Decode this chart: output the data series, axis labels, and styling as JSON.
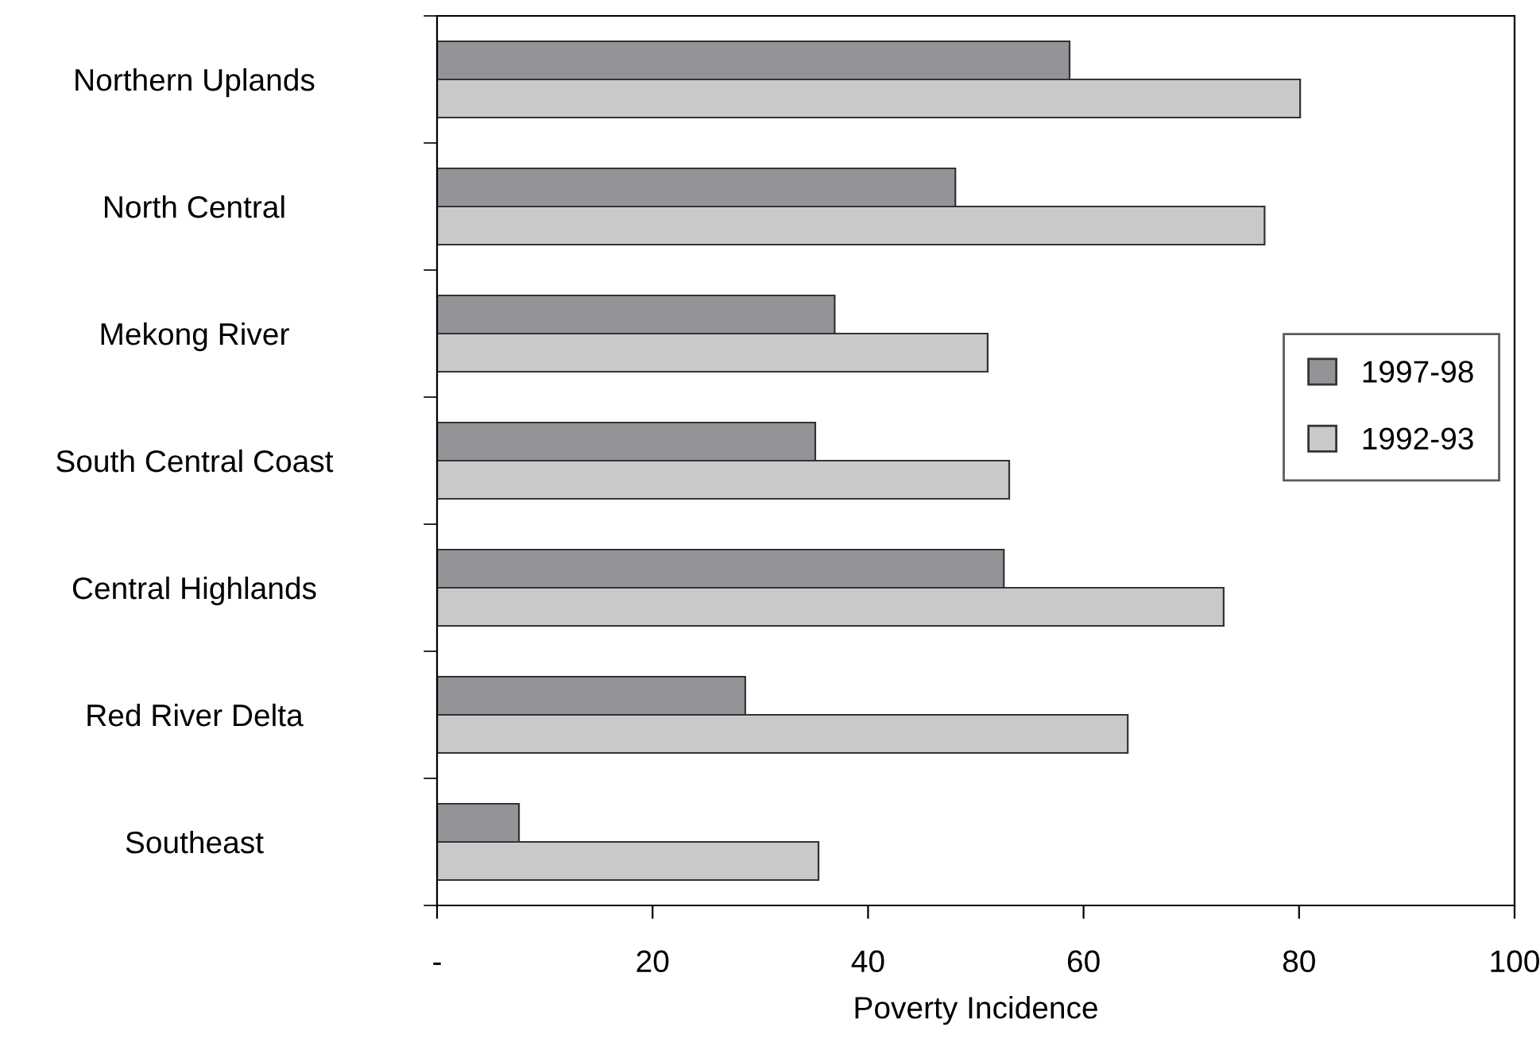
{
  "chart_data": {
    "type": "bar",
    "orientation": "horizontal",
    "xlabel": "Poverty Incidence",
    "categories": [
      "Northern Uplands",
      "North Central",
      "Mekong River",
      "South Central Coast",
      "Central Highlands",
      "Red River Delta",
      "Southeast"
    ],
    "series": [
      {
        "name": "1997-98",
        "color": "#939498",
        "values": [
          58.7,
          48.1,
          36.9,
          35.1,
          52.6,
          28.6,
          7.6
        ]
      },
      {
        "name": "1992-93",
        "color": "#c8c9cb",
        "values": [
          80.1,
          76.8,
          51.1,
          53.1,
          73.0,
          64.1,
          35.4
        ]
      }
    ],
    "xlim": [
      0,
      100
    ],
    "xticks": [
      {
        "value": 0,
        "label": "-"
      },
      20,
      40,
      60,
      80,
      100
    ],
    "grid": false,
    "legend": "right"
  }
}
